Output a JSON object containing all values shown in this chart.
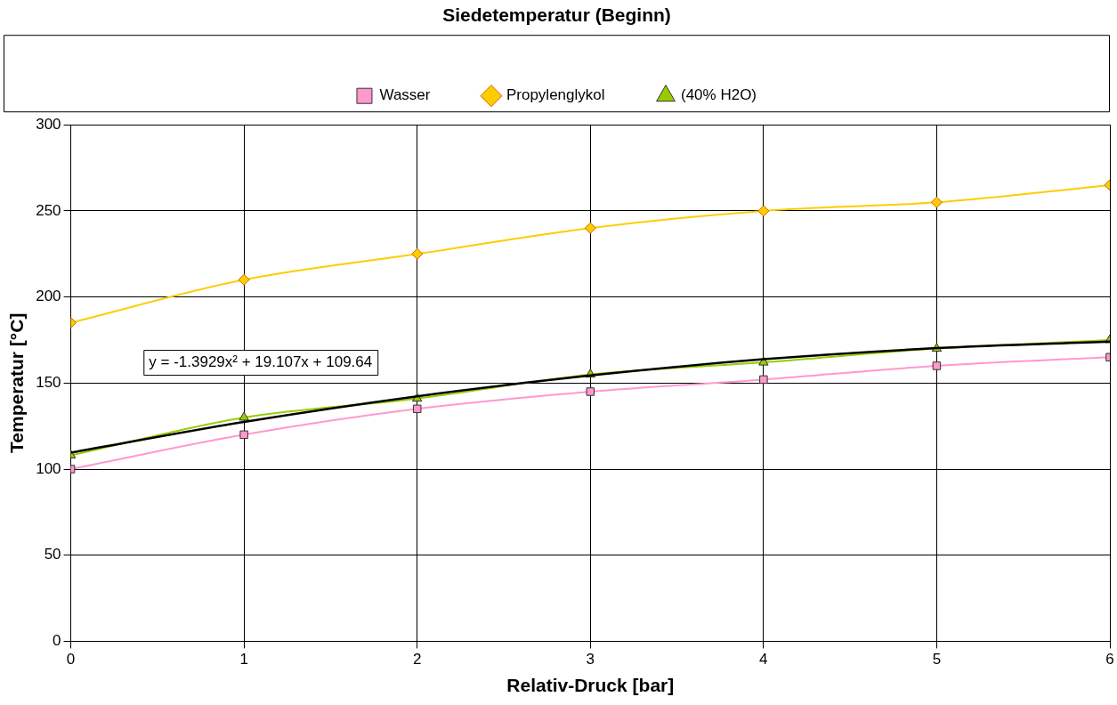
{
  "chart_data": {
    "type": "line",
    "title": "Siedetemperatur (Beginn)",
    "xlabel": "Relativ-Druck [bar]",
    "ylabel": "Temperatur [°C]",
    "x": [
      0,
      1,
      2,
      3,
      4,
      5,
      6
    ],
    "series": [
      {
        "name": "Wasser",
        "color": "#ff99cc",
        "marker": "square",
        "values": [
          100,
          120,
          135,
          145,
          152,
          160,
          165
        ]
      },
      {
        "name": "Propylenglykol",
        "color": "#ffcc00",
        "marker": "diamond",
        "values": [
          185,
          210,
          225,
          240,
          250,
          255,
          265
        ]
      },
      {
        "name": "(40% H2O)",
        "color": "#99cc00",
        "marker": "triangle",
        "values": [
          108,
          130,
          141,
          155,
          162,
          170,
          175
        ]
      },
      {
        "type": "line",
        "color": "#000000",
        "marker": "none",
        "x": [
          0,
          1,
          2,
          3,
          4,
          5,
          6
        ],
        "values": [
          109.6,
          127.4,
          142.3,
          154.4,
          163.8,
          170.3,
          174.1
        ]
      }
    ],
    "xlim": [
      0,
      6
    ],
    "xticks": [
      0,
      1,
      2,
      3,
      4,
      5,
      6
    ],
    "ylim": [
      0,
      300
    ],
    "yticks": [
      0,
      50,
      100,
      150,
      200,
      250,
      300
    ],
    "grid": true,
    "legend": "top",
    "line_style": "solid",
    "annotations": [
      "y = -1.3929x² + 19.107x + 109.64"
    ]
  }
}
